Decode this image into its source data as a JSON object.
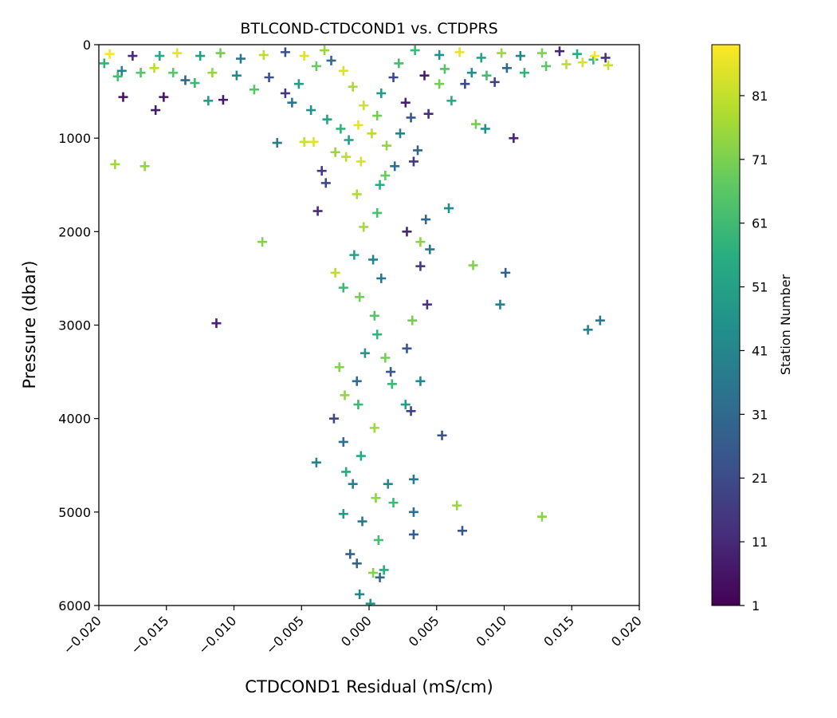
{
  "chart_data": {
    "type": "scatter",
    "title": "BTLCOND-CTDCOND1 vs. CTDPRS",
    "xlabel": "CTDCOND1 Residual (mS/cm)",
    "ylabel": "Pressure (dbar)",
    "xlim": [
      -0.02,
      0.02
    ],
    "ylim": [
      0,
      6000
    ],
    "y_inverted": true,
    "x_ticks": [
      "−0.020",
      "−0.015",
      "−0.010",
      "−0.005",
      "0.000",
      "0.005",
      "0.010",
      "0.015",
      "0.020"
    ],
    "x_tick_values": [
      -0.02,
      -0.015,
      -0.01,
      -0.005,
      0,
      0.005,
      0.01,
      0.015,
      0.02
    ],
    "y_ticks": [
      "0",
      "1000",
      "2000",
      "3000",
      "4000",
      "5000",
      "6000"
    ],
    "y_tick_values": [
      0,
      1000,
      2000,
      3000,
      4000,
      5000,
      6000
    ],
    "marker": "plus",
    "grid": false,
    "colorbar": {
      "label": "Station Number",
      "colormap": "viridis",
      "range": [
        1,
        89
      ],
      "ticks": [
        "1",
        "11",
        "21",
        "31",
        "41",
        "51",
        "61",
        "71",
        "81"
      ],
      "tick_values": [
        1,
        11,
        21,
        31,
        41,
        51,
        61,
        71,
        81
      ]
    },
    "points": [
      {
        "x": -0.0188,
        "y": 1280,
        "c": 76
      },
      {
        "x": -0.0166,
        "y": 1300,
        "c": 74
      },
      {
        "x": -0.0158,
        "y": 700,
        "c": 8
      },
      {
        "x": -0.0152,
        "y": 560,
        "c": 6
      },
      {
        "x": -0.0182,
        "y": 560,
        "c": 5
      },
      {
        "x": -0.0119,
        "y": 600,
        "c": 50
      },
      {
        "x": -0.0108,
        "y": 590,
        "c": 7
      },
      {
        "x": -0.0113,
        "y": 2980,
        "c": 9
      },
      {
        "x": -0.0079,
        "y": 2110,
        "c": 72
      },
      {
        "x": -0.0068,
        "y": 1050,
        "c": 38
      },
      {
        "x": -0.0038,
        "y": 1780,
        "c": 12
      },
      {
        "x": -0.0035,
        "y": 1350,
        "c": 15
      },
      {
        "x": -0.0032,
        "y": 1480,
        "c": 20
      },
      {
        "x": -0.0039,
        "y": 4470,
        "c": 40
      },
      {
        "x": -0.0048,
        "y": 1040,
        "c": 82
      },
      {
        "x": -0.0041,
        "y": 1040,
        "c": 85
      },
      {
        "x": 0.0042,
        "y": 1870,
        "c": 30
      },
      {
        "x": 0.0045,
        "y": 2190,
        "c": 35
      },
      {
        "x": 0.0038,
        "y": 2370,
        "c": 17
      },
      {
        "x": 0.0043,
        "y": 2780,
        "c": 14
      },
      {
        "x": 0.0032,
        "y": 2950,
        "c": 70
      },
      {
        "x": 0.0028,
        "y": 3250,
        "c": 24
      },
      {
        "x": 0.0054,
        "y": 4180,
        "c": 22
      },
      {
        "x": 0.0033,
        "y": 4650,
        "c": 36
      },
      {
        "x": 0.0033,
        "y": 5000,
        "c": 33
      },
      {
        "x": 0.0033,
        "y": 5240,
        "c": 26
      },
      {
        "x": 0.0069,
        "y": 5200,
        "c": 25
      },
      {
        "x": 0.0065,
        "y": 4930,
        "c": 75
      },
      {
        "x": 0.0128,
        "y": 5050,
        "c": 73
      },
      {
        "x": 0.0059,
        "y": 1750,
        "c": 44
      },
      {
        "x": 0.0077,
        "y": 2360,
        "c": 72
      },
      {
        "x": 0.0101,
        "y": 2440,
        "c": 28
      },
      {
        "x": 0.0097,
        "y": 2780,
        "c": 38
      },
      {
        "x": 0.0162,
        "y": 3050,
        "c": 40
      },
      {
        "x": 0.0171,
        "y": 2950,
        "c": 36
      },
      {
        "x": 0.0107,
        "y": 1000,
        "c": 10
      },
      {
        "x": 0.0086,
        "y": 900,
        "c": 45
      },
      {
        "x": 0.0079,
        "y": 850,
        "c": 70
      },
      {
        "x": 0.0044,
        "y": 740,
        "c": 12
      },
      {
        "x": 0.0036,
        "y": 1130,
        "c": 30
      },
      {
        "x": 0.0033,
        "y": 1250,
        "c": 16
      },
      {
        "x": 0.0038,
        "y": 2110,
        "c": 73
      },
      {
        "x": 0.0028,
        "y": 2000,
        "c": 10
      },
      {
        "x": 0.0038,
        "y": 3600,
        "c": 41
      },
      {
        "x": 0.0027,
        "y": 3850,
        "c": 50
      },
      {
        "x": 0.0031,
        "y": 3920,
        "c": 18
      },
      {
        "x": -0.0025,
        "y": 2440,
        "c": 80
      },
      {
        "x": -0.0019,
        "y": 2600,
        "c": 60
      },
      {
        "x": -0.0022,
        "y": 3450,
        "c": 72
      },
      {
        "x": -0.0018,
        "y": 3750,
        "c": 74
      },
      {
        "x": -0.0026,
        "y": 4000,
        "c": 20
      },
      {
        "x": -0.0019,
        "y": 4250,
        "c": 33
      },
      {
        "x": -0.0017,
        "y": 4570,
        "c": 55
      },
      {
        "x": -0.0019,
        "y": 5020,
        "c": 48
      },
      {
        "x": -0.0014,
        "y": 5450,
        "c": 28
      },
      {
        "x": -0.0007,
        "y": 5880,
        "c": 40
      },
      {
        "x": 0.0001,
        "y": 5980,
        "c": 45
      },
      {
        "x": 0.0008,
        "y": 5700,
        "c": 30
      },
      {
        "x": 0.0011,
        "y": 5620,
        "c": 55
      },
      {
        "x": 0.0017,
        "y": 3630,
        "c": 60
      },
      {
        "x": 0.0016,
        "y": 3500,
        "c": 25
      },
      {
        "x": 0.0012,
        "y": 3350,
        "c": 70
      },
      {
        "x": 0.0014,
        "y": 4700,
        "c": 42
      },
      {
        "x": 0.0018,
        "y": 4900,
        "c": 60
      },
      {
        "x": -0.0012,
        "y": 4700,
        "c": 38
      },
      {
        "x": -0.0008,
        "y": 3850,
        "c": 60
      },
      {
        "x": -0.0003,
        "y": 3300,
        "c": 48
      },
      {
        "x": 0.0004,
        "y": 2900,
        "c": 65
      },
      {
        "x": 0.0009,
        "y": 2500,
        "c": 36
      },
      {
        "x": -0.0011,
        "y": 2250,
        "c": 52
      },
      {
        "x": 0.0006,
        "y": 1800,
        "c": 63
      },
      {
        "x": -0.0009,
        "y": 1600,
        "c": 78
      },
      {
        "x": 0.0012,
        "y": 1400,
        "c": 68
      },
      {
        "x": -0.0017,
        "y": 1200,
        "c": 80
      },
      {
        "x": 0.0019,
        "y": 1300,
        "c": 33
      },
      {
        "x": -0.0025,
        "y": 1150,
        "c": 75
      },
      {
        "x": -0.0021,
        "y": 900,
        "c": 58
      },
      {
        "x": 0.0023,
        "y": 950,
        "c": 40
      },
      {
        "x": -0.0031,
        "y": 800,
        "c": 52
      },
      {
        "x": 0.0031,
        "y": 780,
        "c": 25
      },
      {
        "x": -0.0043,
        "y": 700,
        "c": 45
      },
      {
        "x": 0.0027,
        "y": 620,
        "c": 9
      },
      {
        "x": -0.0057,
        "y": 620,
        "c": 35
      },
      {
        "x": 0.0061,
        "y": 600,
        "c": 55
      },
      {
        "x": 0.0052,
        "y": 420,
        "c": 70
      },
      {
        "x": -0.0062,
        "y": 520,
        "c": 15
      },
      {
        "x": 0.0071,
        "y": 420,
        "c": 20
      },
      {
        "x": -0.0085,
        "y": 480,
        "c": 65
      },
      {
        "x": 0.0087,
        "y": 330,
        "c": 62
      },
      {
        "x": -0.0098,
        "y": 330,
        "c": 42
      },
      {
        "x": 0.0102,
        "y": 250,
        "c": 30
      },
      {
        "x": -0.0129,
        "y": 410,
        "c": 60
      },
      {
        "x": 0.0115,
        "y": 300,
        "c": 58
      },
      {
        "x": -0.0145,
        "y": 300,
        "c": 66
      },
      {
        "x": 0.0131,
        "y": 230,
        "c": 66
      },
      {
        "x": -0.0169,
        "y": 300,
        "c": 65
      },
      {
        "x": 0.0146,
        "y": 210,
        "c": 80
      },
      {
        "x": -0.0186,
        "y": 340,
        "c": 62
      },
      {
        "x": 0.0158,
        "y": 190,
        "c": 84
      },
      {
        "x": -0.0196,
        "y": 200,
        "c": 58
      },
      {
        "x": 0.0166,
        "y": 160,
        "c": 60
      },
      {
        "x": 0.0177,
        "y": 220,
        "c": 82
      },
      {
        "x": 0.0175,
        "y": 140,
        "c": 14
      },
      {
        "x": 0.0167,
        "y": 120,
        "c": 88
      },
      {
        "x": -0.0192,
        "y": 100,
        "c": 88
      },
      {
        "x": -0.0175,
        "y": 120,
        "c": 12
      },
      {
        "x": -0.0155,
        "y": 120,
        "c": 55
      },
      {
        "x": -0.0142,
        "y": 90,
        "c": 86
      },
      {
        "x": -0.0125,
        "y": 120,
        "c": 50
      },
      {
        "x": -0.011,
        "y": 90,
        "c": 70
      },
      {
        "x": -0.0095,
        "y": 150,
        "c": 35
      },
      {
        "x": -0.0078,
        "y": 110,
        "c": 80
      },
      {
        "x": -0.0062,
        "y": 80,
        "c": 22
      },
      {
        "x": -0.0048,
        "y": 120,
        "c": 85
      },
      {
        "x": -0.0033,
        "y": 60,
        "c": 75
      },
      {
        "x": 0.0034,
        "y": 60,
        "c": 60
      },
      {
        "x": 0.0052,
        "y": 110,
        "c": 45
      },
      {
        "x": 0.0067,
        "y": 80,
        "c": 86
      },
      {
        "x": 0.0083,
        "y": 140,
        "c": 52
      },
      {
        "x": 0.0098,
        "y": 90,
        "c": 76
      },
      {
        "x": 0.0112,
        "y": 120,
        "c": 40
      },
      {
        "x": 0.0128,
        "y": 90,
        "c": 72
      },
      {
        "x": 0.0141,
        "y": 70,
        "c": 10
      },
      {
        "x": 0.0154,
        "y": 100,
        "c": 56
      },
      {
        "x": -0.0183,
        "y": 280,
        "c": 40
      },
      {
        "x": -0.0159,
        "y": 250,
        "c": 80
      },
      {
        "x": -0.0136,
        "y": 380,
        "c": 30
      },
      {
        "x": -0.0116,
        "y": 300,
        "c": 75
      },
      {
        "x": -0.0074,
        "y": 350,
        "c": 22
      },
      {
        "x": -0.0052,
        "y": 420,
        "c": 50
      },
      {
        "x": 0.0041,
        "y": 330,
        "c": 8
      },
      {
        "x": 0.0056,
        "y": 260,
        "c": 65
      },
      {
        "x": 0.0076,
        "y": 300,
        "c": 44
      },
      {
        "x": 0.0093,
        "y": 400,
        "c": 18
      },
      {
        "x": -0.0039,
        "y": 230,
        "c": 68
      },
      {
        "x": -0.0028,
        "y": 170,
        "c": 30
      },
      {
        "x": -0.0019,
        "y": 280,
        "c": 84
      },
      {
        "x": 0.0022,
        "y": 200,
        "c": 62
      },
      {
        "x": 0.0018,
        "y": 350,
        "c": 20
      },
      {
        "x": -0.0012,
        "y": 450,
        "c": 78
      },
      {
        "x": 0.0009,
        "y": 520,
        "c": 48
      },
      {
        "x": -0.0004,
        "y": 650,
        "c": 82
      },
      {
        "x": 0.0006,
        "y": 760,
        "c": 70
      },
      {
        "x": -0.0008,
        "y": 860,
        "c": 86
      },
      {
        "x": 0.0002,
        "y": 950,
        "c": 80
      },
      {
        "x": -0.0015,
        "y": 1020,
        "c": 50
      },
      {
        "x": 0.0013,
        "y": 1080,
        "c": 74
      },
      {
        "x": -0.0006,
        "y": 1250,
        "c": 84
      },
      {
        "x": 0.0008,
        "y": 1500,
        "c": 55
      },
      {
        "x": -0.0004,
        "y": 1950,
        "c": 77
      },
      {
        "x": 0.0003,
        "y": 2300,
        "c": 40
      },
      {
        "x": -0.0007,
        "y": 2700,
        "c": 70
      },
      {
        "x": 0.0006,
        "y": 3100,
        "c": 58
      },
      {
        "x": -0.0009,
        "y": 3600,
        "c": 32
      },
      {
        "x": 0.0004,
        "y": 4100,
        "c": 76
      },
      {
        "x": -0.0006,
        "y": 4400,
        "c": 54
      },
      {
        "x": 0.0005,
        "y": 4850,
        "c": 74
      },
      {
        "x": -0.0005,
        "y": 5100,
        "c": 36
      },
      {
        "x": 0.0007,
        "y": 5300,
        "c": 62
      },
      {
        "x": -0.0009,
        "y": 5550,
        "c": 30
      },
      {
        "x": 0.0003,
        "y": 5650,
        "c": 72
      }
    ]
  }
}
